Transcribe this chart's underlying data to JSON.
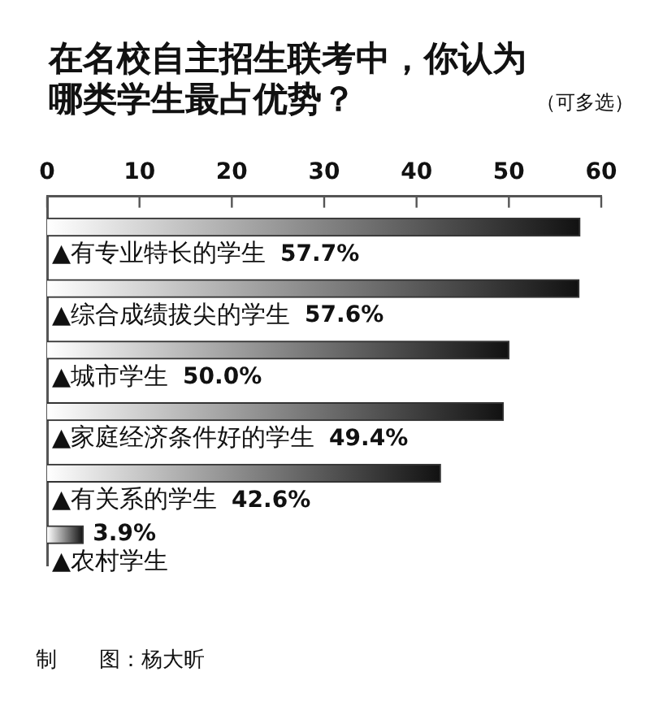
{
  "chart_data": {
    "type": "bar",
    "orientation": "horizontal",
    "title": "在名校自主招生联考中，你认为哪类学生最占优势？",
    "subtitle": "（可多选）",
    "categories": [
      "▲有专业特长的学生",
      "▲综合成绩拔尖的学生",
      "▲城市学生",
      "▲家庭经济条件好的学生",
      "▲有关系的学生",
      "▲农村学生"
    ],
    "values": [
      57.7,
      57.6,
      50.0,
      49.4,
      42.6,
      3.9
    ],
    "value_labels": [
      "57.7%",
      "57.6%",
      "50.0%",
      "49.4%",
      "42.6%",
      "3.9%"
    ],
    "color": "#111111",
    "xlim": [
      0,
      60
    ],
    "xticks": [
      0,
      10,
      20,
      30,
      40,
      50,
      60
    ],
    "annotations": [
      "制　　图：杨大昕"
    ]
  }
}
